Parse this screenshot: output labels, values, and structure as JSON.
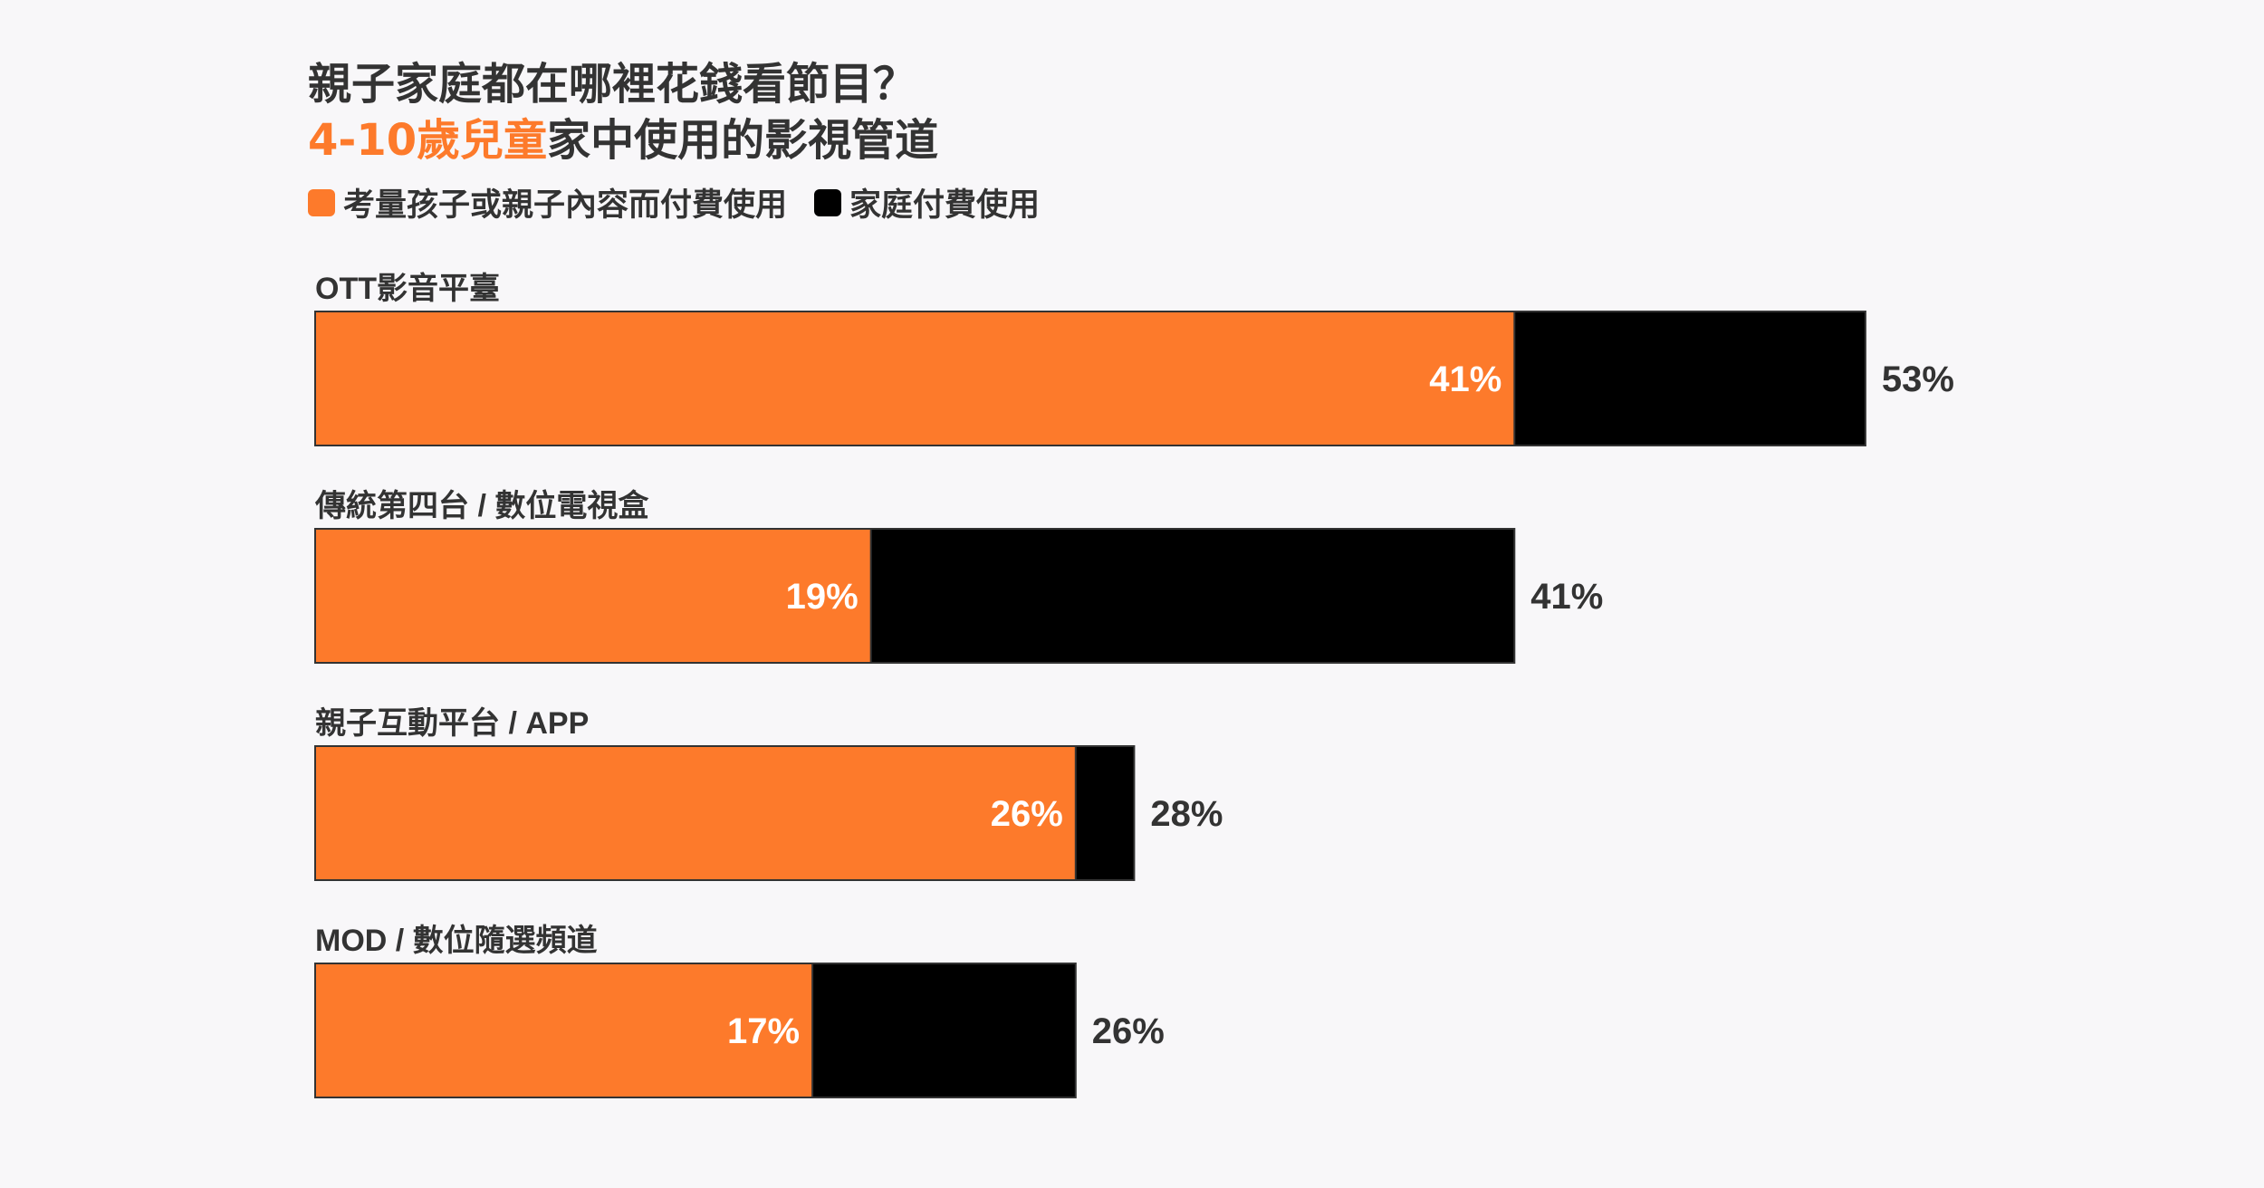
{
  "title": {
    "line1": "親子家庭都在哪裡花錢看節目？",
    "line2_accent": "4-10歲兒童",
    "line2_rest": "家中使用的影視管道"
  },
  "legend": {
    "items": [
      {
        "label": "考量孩子或親子內容而付費使用",
        "color": "#fd7a2b"
      },
      {
        "label": "家庭付費使用",
        "color": "#000000"
      }
    ]
  },
  "chart_data": {
    "type": "bar",
    "orientation": "horizontal",
    "stacked": "overlay",
    "categories": [
      "OTT影音平臺",
      "傳統第四台 / 數位電視盒",
      "親子互動平台 / APP",
      "MOD / 數位隨選頻道"
    ],
    "series": [
      {
        "name": "考量孩子或親子內容而付費使用",
        "color": "#fd7a2b",
        "values": [
          41,
          19,
          26,
          17
        ],
        "labels": [
          "41%",
          "19%",
          "26%",
          "17%"
        ]
      },
      {
        "name": "家庭付費使用",
        "color": "#000000",
        "values": [
          53,
          41,
          28,
          26
        ],
        "labels": [
          "53%",
          "41%",
          "28%",
          "26%"
        ]
      }
    ],
    "unit": "%",
    "xlim": [
      0,
      100
    ],
    "grid": false,
    "legend_position": "top-left"
  }
}
